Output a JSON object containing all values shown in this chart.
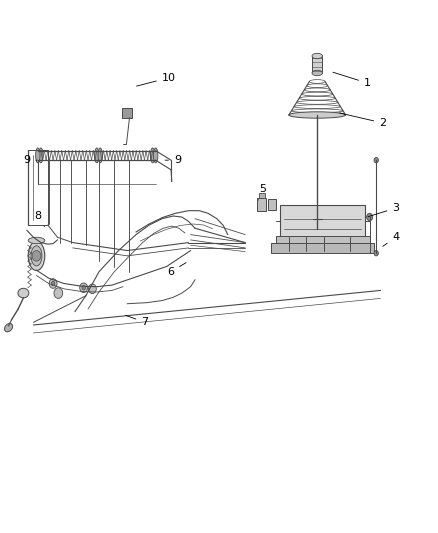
{
  "bg_color": "#ffffff",
  "line_color": "#4a4a4a",
  "label_color": "#000000",
  "fig_width": 4.38,
  "fig_height": 5.33,
  "dpi": 100,
  "callouts": {
    "1": [
      0.84,
      0.845,
      0.755,
      0.867
    ],
    "2": [
      0.875,
      0.77,
      0.77,
      0.79
    ],
    "3": [
      0.905,
      0.61,
      0.835,
      0.592
    ],
    "4": [
      0.905,
      0.555,
      0.87,
      0.535
    ],
    "5": [
      0.6,
      0.645,
      0.59,
      0.625
    ],
    "6": [
      0.39,
      0.49,
      0.43,
      0.51
    ],
    "7": [
      0.33,
      0.395,
      0.28,
      0.41
    ],
    "8": [
      0.085,
      0.595,
      0.1,
      0.575
    ],
    "9a": [
      0.06,
      0.7,
      0.09,
      0.7
    ],
    "9b": [
      0.405,
      0.7,
      0.37,
      0.7
    ],
    "10": [
      0.385,
      0.855,
      0.305,
      0.838
    ]
  }
}
